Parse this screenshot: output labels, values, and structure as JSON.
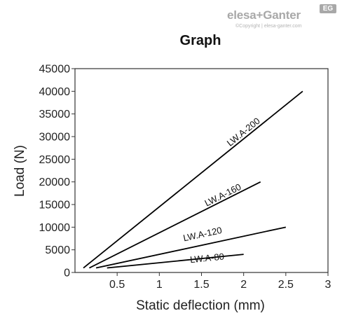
{
  "brand": {
    "name": "elesa+Ganter",
    "badge": "EG",
    "copyright": "©Copyright | elesa-ganter.com"
  },
  "chart_data": {
    "type": "line",
    "title": "Graph",
    "xlabel": "Static deflection (mm)",
    "ylabel": "Load (N)",
    "xlim": [
      0,
      3
    ],
    "ylim": [
      0,
      45000
    ],
    "x_ticks": [
      0.5,
      1,
      1.5,
      2,
      2.5,
      3
    ],
    "x_tick_labels": [
      "0.5",
      "1",
      "1.5",
      "2",
      "2.5",
      "3"
    ],
    "y_ticks": [
      0,
      5000,
      10000,
      15000,
      20000,
      25000,
      30000,
      35000,
      40000,
      45000
    ],
    "y_tick_labels": [
      "0",
      "5000",
      "10000",
      "15000",
      "20000",
      "25000",
      "30000",
      "35000",
      "40000",
      "45000"
    ],
    "grid": false,
    "legend": "none",
    "line_color": "#000000",
    "series": [
      {
        "name": "LW.A-200",
        "x": [
          0.1,
          2.7
        ],
        "y": [
          1000,
          40000
        ],
        "label_x": 2.02,
        "label_y": 30500
      },
      {
        "name": "LW.A-160",
        "x": [
          0.17,
          2.2
        ],
        "y": [
          1000,
          20000
        ],
        "label_x": 1.77,
        "label_y": 16500
      },
      {
        "name": "LW.A-120",
        "x": [
          0.25,
          2.5
        ],
        "y": [
          1000,
          10000
        ],
        "label_x": 1.52,
        "label_y": 7800
      },
      {
        "name": "LW.A-80",
        "x": [
          0.38,
          2.0
        ],
        "y": [
          1000,
          4000
        ],
        "label_x": 1.57,
        "label_y": 2500
      }
    ]
  }
}
